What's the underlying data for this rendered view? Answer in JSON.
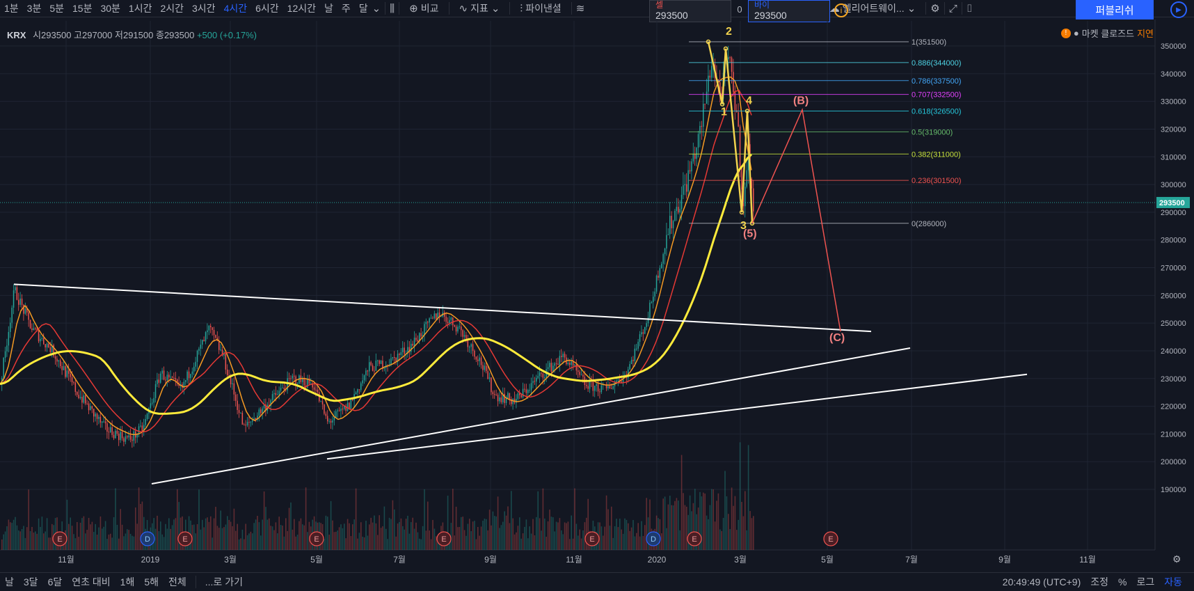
{
  "toolbar": {
    "intervals": [
      "1분",
      "3분",
      "5분",
      "15분",
      "30분",
      "1시간",
      "2시간",
      "3시간",
      "4시간",
      "6시간",
      "12시간",
      "날",
      "주",
      "달"
    ],
    "active_interval": "4시간",
    "compare": "비교",
    "indicators": "지표",
    "fib": "파이낸셜",
    "layout": "엘리어트웨이...",
    "publish": "퍼블리쉬",
    "sell_label": "셀",
    "sell_value": "293500",
    "spread": "0",
    "buy_label": "바이",
    "buy_value": "293500"
  },
  "legend": {
    "symbol": "KRX",
    "open": "시293500",
    "high": "고297000",
    "low": "저291500",
    "close": "종293500",
    "change": "+500 (+0.17%)"
  },
  "market_status": {
    "text": "마켓 클로즈드",
    "delay": "지연"
  },
  "chart_data": {
    "type": "candlestick",
    "price_axis": [
      "350000",
      "340000",
      "330000",
      "320000",
      "310000",
      "300000",
      "290000",
      "280000",
      "270000",
      "260000",
      "250000",
      "240000",
      "230000",
      "220000",
      "210000",
      "200000",
      "190000"
    ],
    "time_axis": [
      "11월",
      "2019",
      "3월",
      "5월",
      "7월",
      "9월",
      "11월",
      "2020",
      "3월",
      "5월",
      "7월",
      "9월",
      "11월"
    ],
    "current_price": "293500",
    "fib_levels": [
      {
        "label": "1(351500)",
        "color": "#b2b5be"
      },
      {
        "label": "0.886(344000)",
        "color": "#4dd0e1"
      },
      {
        "label": "0.786(337500)",
        "color": "#42a5f5"
      },
      {
        "label": "0.707(332500)",
        "color": "#e040fb"
      },
      {
        "label": "0.618(326500)",
        "color": "#26c6da"
      },
      {
        "label": "0.5(319000)",
        "color": "#66bb6a"
      },
      {
        "label": "0.382(311000)",
        "color": "#c6e03b"
      },
      {
        "label": "0.236(301500)",
        "color": "#ef5350"
      },
      {
        "label": "0(286000)",
        "color": "#b2b5be"
      }
    ],
    "wave_labels": [
      "2",
      "1",
      "4",
      "3",
      "(5)",
      "(B)",
      "(C)"
    ],
    "event_markers": [
      "E",
      "D",
      "E",
      "E",
      "E",
      "E",
      "D",
      "E",
      "E"
    ],
    "colors": {
      "up": "#26a69a",
      "down": "#ef5350",
      "ma_short": "#f59a23",
      "ma_mid": "#e53935",
      "ma_long": "#ffeb3b",
      "wave": "#f2d34e",
      "target": "#ef5350",
      "trend": "#ffffff"
    }
  },
  "bottom": {
    "ranges": [
      "날",
      "3달",
      "6달",
      "연초 대비",
      "1해",
      "5해",
      "전체"
    ],
    "goto": "...로 가기",
    "time": "20:49:49 (UTC+9)",
    "adjust": "조정",
    "percent": "%",
    "log": "로그",
    "auto": "자동"
  }
}
